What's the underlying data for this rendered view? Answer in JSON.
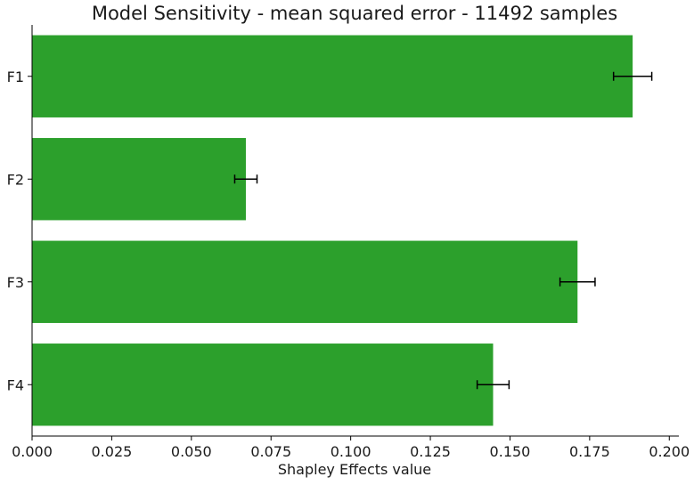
{
  "chart_data": {
    "type": "bar",
    "orientation": "horizontal",
    "title": "Model Sensitivity - mean squared error - 11492 samples",
    "xlabel": "Shapley Effects value",
    "ylabel": "",
    "categories": [
      "F1",
      "F2",
      "F3",
      "F4"
    ],
    "values": [
      0.1885,
      0.0671,
      0.1712,
      0.1447
    ],
    "error": [
      0.006,
      0.0035,
      0.0055,
      0.005
    ],
    "xlim": [
      0,
      0.203
    ],
    "xticks": [
      "0.000",
      "0.025",
      "0.050",
      "0.075",
      "0.100",
      "0.125",
      "0.150",
      "0.175",
      "0.200"
    ],
    "grid": false,
    "legend": "none",
    "bar_color": "#2ca02c",
    "error_color": "#000000"
  }
}
